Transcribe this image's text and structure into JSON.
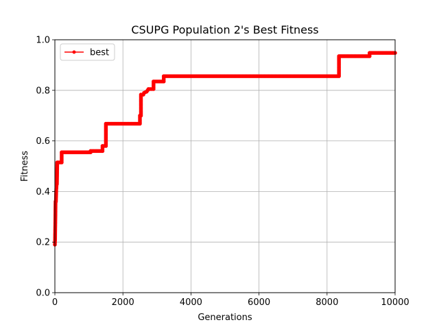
{
  "chart_data": {
    "type": "line",
    "title": "CSUPG Population 2's Best Fitness",
    "xlabel": "Generations",
    "ylabel": "Fitness",
    "xlim": [
      0,
      10000
    ],
    "ylim": [
      0,
      1.0
    ],
    "xticks": [
      0,
      2000,
      4000,
      6000,
      8000,
      10000
    ],
    "xtick_labels": [
      "0",
      "2000",
      "4000",
      "6000",
      "8000",
      "10000"
    ],
    "yticks": [
      0,
      0.2,
      0.4,
      0.6,
      0.8,
      1.0
    ],
    "ytick_labels": [
      "0.0",
      "0.2",
      "0.4",
      "0.6",
      "0.8",
      "1.0"
    ],
    "grid": true,
    "legend_position": "top-left",
    "series": [
      {
        "name": "best",
        "color": "#ff0000",
        "marker": "circle",
        "points": [
          [
            0,
            0.19
          ],
          [
            5,
            0.205
          ],
          [
            10,
            0.255
          ],
          [
            15,
            0.3
          ],
          [
            20,
            0.36
          ],
          [
            30,
            0.36
          ],
          [
            40,
            0.405
          ],
          [
            50,
            0.425
          ],
          [
            60,
            0.43
          ],
          [
            70,
            0.515
          ],
          [
            200,
            0.515
          ],
          [
            200,
            0.555
          ],
          [
            1050,
            0.555
          ],
          [
            1050,
            0.56
          ],
          [
            1400,
            0.56
          ],
          [
            1400,
            0.58
          ],
          [
            1500,
            0.58
          ],
          [
            1500,
            0.668
          ],
          [
            2500,
            0.668
          ],
          [
            2500,
            0.7
          ],
          [
            2530,
            0.7
          ],
          [
            2530,
            0.783
          ],
          [
            2600,
            0.783
          ],
          [
            2620,
            0.79
          ],
          [
            2700,
            0.795
          ],
          [
            2750,
            0.805
          ],
          [
            2900,
            0.805
          ],
          [
            2900,
            0.835
          ],
          [
            3200,
            0.835
          ],
          [
            3200,
            0.856
          ],
          [
            8350,
            0.856
          ],
          [
            8350,
            0.935
          ],
          [
            9250,
            0.935
          ],
          [
            9250,
            0.948
          ],
          [
            10000,
            0.948
          ]
        ]
      }
    ]
  }
}
